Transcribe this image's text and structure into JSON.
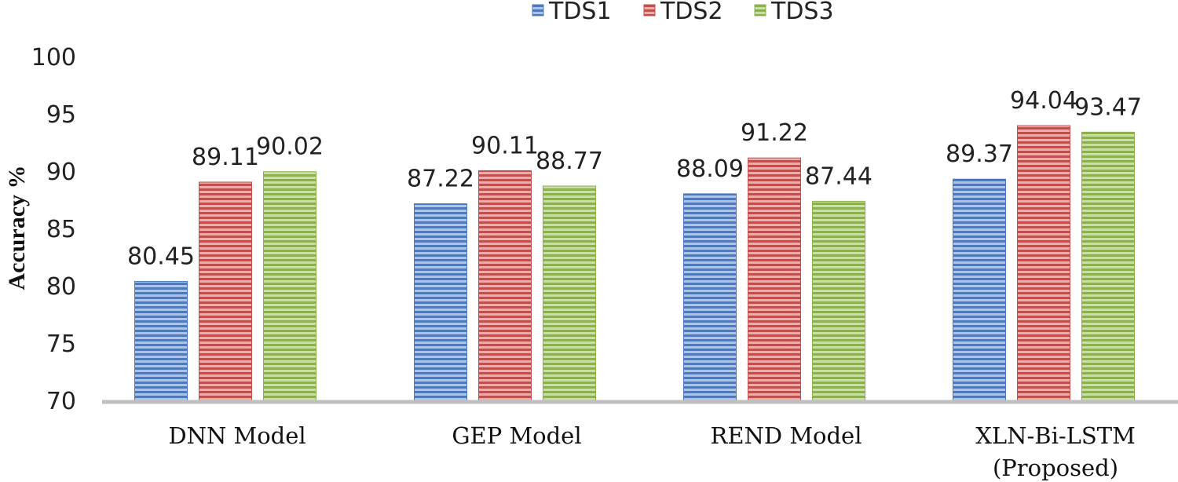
{
  "chart_data": {
    "type": "bar",
    "categories": [
      "DNN Model",
      "GEP Model",
      "REND Model",
      "XLN-Bi-LSTM (Proposed)"
    ],
    "category_lines": [
      [
        "DNN Model"
      ],
      [
        "GEP Model"
      ],
      [
        "REND Model"
      ],
      [
        "XLN-Bi-LSTM",
        "(Proposed)"
      ]
    ],
    "series": [
      {
        "name": "TDS1",
        "color": "#4f79b8",
        "values": [
          80.45,
          87.22,
          88.09,
          89.37
        ]
      },
      {
        "name": "TDS2",
        "color": "#c0504d",
        "values": [
          89.11,
          90.11,
          91.22,
          94.04
        ]
      },
      {
        "name": "TDS3",
        "color": "#8db04f",
        "values": [
          90.02,
          88.77,
          87.44,
          93.47
        ]
      }
    ],
    "xlabel": "",
    "ylabel": "Accuracy %",
    "ylim": [
      70,
      100
    ],
    "yticks": [
      70,
      75,
      80,
      85,
      90,
      95,
      100
    ],
    "grid": false,
    "legend_position": "top-center",
    "axis_color": "#bfbfbf"
  }
}
